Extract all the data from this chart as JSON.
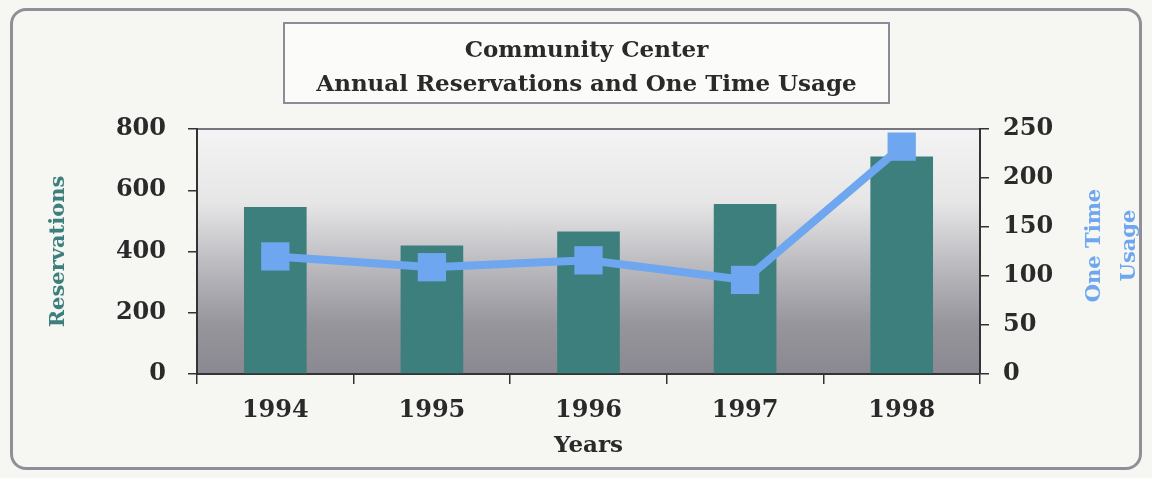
{
  "chart_data": {
    "type": "bar",
    "title": "Community Center",
    "subtitle": "Annual Reservations and One Time Usage",
    "xlabel": "Years",
    "ylabel": "Reservations",
    "y2label": "One Time Usage",
    "categories": [
      "1994",
      "1995",
      "1996",
      "1997",
      "1998"
    ],
    "series": [
      {
        "color": "#3d7f7c",
        "values": [
          545,
          420,
          465,
          555,
          710
        ]
      },
      {
        "type": "line",
        "axis": "y2",
        "color": "#6ea6ef",
        "marker": "square",
        "values": [
          120,
          109,
          116,
          96,
          232
        ]
      }
    ],
    "ylim": [
      0,
      800
    ],
    "yticks": [
      0,
      200,
      400,
      600,
      800
    ],
    "y2lim": [
      0,
      250
    ],
    "y2ticks": [
      0,
      50,
      100,
      150,
      200,
      250
    ]
  }
}
